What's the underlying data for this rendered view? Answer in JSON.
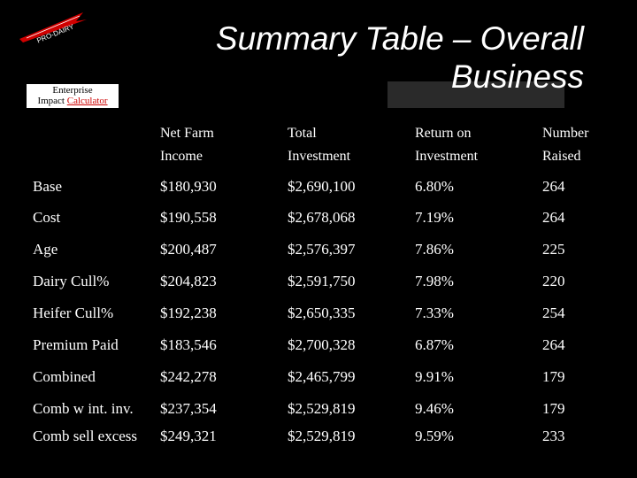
{
  "logo": {
    "text": "PRO-DAIRY",
    "color": "#d00000"
  },
  "badge": {
    "line1": "Enterprise",
    "line2a": "Impact ",
    "line2b": "Calculator"
  },
  "title": {
    "line1": "Summary Table – Overall",
    "line2": "Business"
  },
  "table": {
    "headers": [
      {
        "line1": "Net Farm",
        "line2": "Income"
      },
      {
        "line1": "Total",
        "line2": "Investment"
      },
      {
        "line1": "Return on",
        "line2": "Investment"
      },
      {
        "line1": "Number",
        "line2": "Raised"
      }
    ],
    "rows": [
      {
        "label": "Base",
        "nfi": "$180,930",
        "ti": "$2,690,100",
        "roi": "6.80%",
        "num": "264"
      },
      {
        "label": "Cost",
        "nfi": "$190,558",
        "ti": "$2,678,068",
        "roi": "7.19%",
        "num": "264"
      },
      {
        "label": "Age",
        "nfi": "$200,487",
        "ti": "$2,576,397",
        "roi": "7.86%",
        "num": "225"
      },
      {
        "label": "Dairy Cull%",
        "nfi": "$204,823",
        "ti": "$2,591,750",
        "roi": "7.98%",
        "num": "220"
      },
      {
        "label": "Heifer Cull%",
        "nfi": "$192,238",
        "ti": "$2,650,335",
        "roi": "7.33%",
        "num": "254"
      },
      {
        "label": "Premium Paid",
        "nfi": "$183,546",
        "ti": "$2,700,328",
        "roi": "6.87%",
        "num": "264"
      },
      {
        "label": "Combined",
        "nfi": "$242,278",
        "ti": "$2,465,799",
        "roi": "9.91%",
        "num": "179"
      },
      {
        "label": "Comb w int. inv.",
        "nfi": "$237,354",
        "ti": "$2,529,819",
        "roi": "9.46%",
        "num": "179"
      },
      {
        "label": "Comb sell excess",
        "nfi": "$249,321",
        "ti": "$2,529,819",
        "roi": "9.59%",
        "num": "233"
      }
    ]
  }
}
